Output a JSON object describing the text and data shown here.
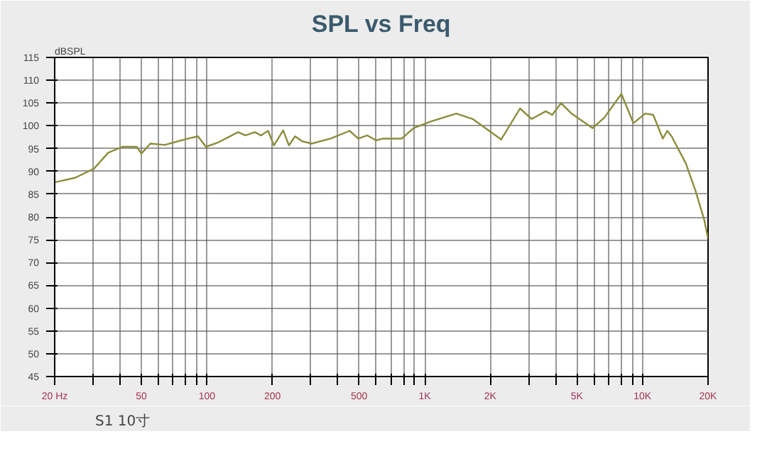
{
  "chart_data": {
    "type": "line",
    "title": "SPL vs Freq",
    "ylabel": "dBSPL",
    "x": [
      20,
      24.8,
      30.3,
      35.2,
      40.9,
      47.6,
      50,
      55,
      64,
      82,
      91,
      99,
      112,
      139,
      150,
      166,
      177,
      191,
      203,
      224,
      238,
      254,
      274,
      303,
      370,
      452,
      495,
      545,
      598,
      643,
      785,
      889,
      1060,
      1396,
      1660,
      2246,
      2740,
      3100,
      3600,
      3850,
      4230,
      4720,
      5900,
      6680,
      8000,
      9080,
      10300,
      11200,
      12400,
      13000,
      13600,
      15800,
      17500,
      19200,
      20000
    ],
    "series": [
      {
        "name": "S1 10寸",
        "color": "#8c8c3c",
        "values": [
          87.6,
          88.6,
          90.6,
          94.1,
          95.4,
          95.4,
          93.9,
          96.1,
          95.8,
          97.2,
          97.7,
          95.4,
          96.3,
          98.6,
          97.9,
          98.6,
          97.9,
          98.9,
          95.7,
          99.0,
          95.7,
          97.7,
          96.6,
          96.1,
          97.2,
          98.9,
          97.2,
          97.9,
          96.8,
          97.2,
          97.2,
          99.5,
          100.9,
          102.7,
          101.5,
          97.0,
          103.8,
          101.5,
          103.2,
          102.4,
          105.0,
          102.7,
          99.5,
          101.8,
          107.0,
          100.6,
          102.7,
          102.4,
          97.2,
          98.9,
          97.7,
          91.8,
          85.8,
          79.4,
          75.3
        ]
      }
    ],
    "log": "x",
    "xlim": [
      20,
      20000
    ],
    "ylim": [
      45,
      115
    ],
    "xticks": [
      {
        "value": 20,
        "label": "20 Hz"
      },
      {
        "value": 30,
        "label": null
      },
      {
        "value": 40,
        "label": null
      },
      50,
      {
        "value": 60,
        "label": null
      },
      {
        "value": 70,
        "label": null
      },
      {
        "value": 80,
        "label": null
      },
      {
        "value": 90,
        "label": null
      },
      100,
      200,
      {
        "value": 300,
        "label": null
      },
      {
        "value": 400,
        "label": null
      },
      500,
      {
        "value": 600,
        "label": null
      },
      {
        "value": 700,
        "label": null
      },
      {
        "value": 800,
        "label": null
      },
      {
        "value": 900,
        "label": null
      },
      {
        "value": 1000,
        "label": "1K"
      },
      {
        "value": 2000,
        "label": "2K"
      },
      {
        "value": 3000,
        "label": null
      },
      {
        "value": 4000,
        "label": null
      },
      {
        "value": 5000,
        "label": "5K"
      },
      {
        "value": 6000,
        "label": null
      },
      {
        "value": 7000,
        "label": null
      },
      {
        "value": 8000,
        "label": null
      },
      {
        "value": 9000,
        "label": null
      },
      {
        "value": 10000,
        "label": "10K"
      },
      {
        "value": 20000,
        "label": "20K"
      }
    ],
    "yticks": [
      45,
      50,
      55,
      60,
      65,
      70,
      75,
      80,
      85,
      90,
      95,
      100,
      105,
      110,
      115
    ],
    "grid": true,
    "legend": "bottom",
    "marker": "none",
    "line_style": "solid"
  }
}
